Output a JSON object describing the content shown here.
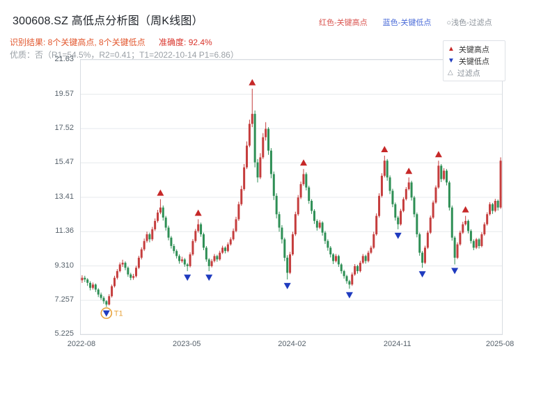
{
  "header": {
    "title": "300608.SZ 高低点分析图（周K线图）",
    "legend_inline": [
      {
        "label": "红色-关键高点",
        "color": "#d9544f"
      },
      {
        "label": "蓝色-关键低点",
        "color": "#4a6bd8"
      },
      {
        "label": "○浅色-过滤点",
        "color": "#8a9199"
      }
    ],
    "result_main": "识别结果: 8个关键高点, 8个关键低点",
    "result_accuracy": "准确度: 92.4%",
    "key_high_count": 8,
    "key_low_count": 8,
    "accuracy": "92.4%",
    "quality_line": "优质：否（R1=54.5%，R2=0.41；T1=2022-10-14 P1=6.86）"
  },
  "legend_box": {
    "items": [
      {
        "label": "关键高点",
        "marker": "up",
        "color": "#c62828"
      },
      {
        "label": "关键低点",
        "marker": "down",
        "color": "#1f3bbf"
      },
      {
        "label": "过滤点",
        "marker": "up-outline",
        "color": "#8a9199"
      }
    ]
  },
  "chart_data": {
    "type": "candlestick",
    "title": "300608.SZ 高低点分析图（周K线图）",
    "xlabel": "",
    "ylabel": "",
    "grid": true,
    "ylim": [
      5.225,
      21.63
    ],
    "yticks": [
      21.63,
      19.57,
      17.52,
      15.47,
      13.41,
      11.36,
      9.31,
      7.257,
      5.225
    ],
    "ytick_labels": [
      "21.63",
      "19.57",
      "17.52",
      "15.47",
      "13.41",
      "11.36",
      "9.310",
      "7.257",
      "5.225"
    ],
    "xtick_labels": [
      "2022-08",
      "2023-05",
      "2024-02",
      "2024-11",
      "2025-08"
    ],
    "xtick_weeks": [
      0,
      39,
      78,
      117,
      155
    ],
    "up_color": "#c53d3d",
    "down_color": "#2e8f55",
    "grid_color": "#e6e9ec",
    "high_marker_color": "#c62828",
    "low_marker_color": "#1f3bbf",
    "key_highs": [
      29,
      43,
      63,
      82,
      112,
      121,
      132,
      142
    ],
    "key_lows": [
      9,
      39,
      47,
      76,
      99,
      117,
      126,
      138
    ],
    "t1": {
      "week": 9,
      "label": "T1",
      "price": 6.86,
      "date": "2022-10-14",
      "color": "#e8a33d"
    },
    "candles": [
      [
        8.45,
        8.75,
        8.3,
        8.6
      ],
      [
        8.6,
        8.72,
        8.35,
        8.5
      ],
      [
        8.5,
        8.58,
        8.12,
        8.3
      ],
      [
        8.3,
        8.4,
        7.85,
        8.0
      ],
      [
        8.0,
        8.32,
        7.9,
        8.2
      ],
      [
        8.2,
        8.26,
        7.75,
        7.9
      ],
      [
        7.9,
        7.98,
        7.45,
        7.6
      ],
      [
        7.6,
        7.72,
        7.28,
        7.4
      ],
      [
        7.4,
        7.5,
        7.05,
        7.2
      ],
      [
        7.2,
        7.26,
        6.86,
        7.0
      ],
      [
        7.0,
        7.62,
        6.95,
        7.5
      ],
      [
        7.5,
        8.2,
        7.42,
        8.1
      ],
      [
        8.1,
        8.72,
        8.02,
        8.6
      ],
      [
        8.6,
        9.12,
        8.5,
        9.0
      ],
      [
        9.0,
        9.52,
        8.92,
        9.4
      ],
      [
        9.4,
        9.68,
        9.25,
        9.5
      ],
      [
        9.5,
        9.58,
        9.05,
        9.2
      ],
      [
        9.2,
        9.28,
        8.66,
        8.8
      ],
      [
        8.8,
        8.9,
        8.46,
        8.6
      ],
      [
        8.6,
        8.84,
        8.48,
        8.7
      ],
      [
        8.7,
        9.32,
        8.62,
        9.2
      ],
      [
        9.2,
        9.92,
        9.12,
        9.8
      ],
      [
        9.8,
        10.42,
        9.7,
        10.3
      ],
      [
        10.3,
        10.95,
        10.2,
        10.8
      ],
      [
        10.8,
        11.36,
        10.7,
        11.2
      ],
      [
        11.2,
        11.3,
        10.72,
        10.9
      ],
      [
        10.9,
        11.64,
        10.8,
        11.5
      ],
      [
        11.5,
        12.15,
        11.4,
        12.0
      ],
      [
        12.0,
        12.66,
        11.9,
        12.5
      ],
      [
        12.5,
        13.3,
        12.4,
        12.8
      ],
      [
        12.8,
        12.92,
        12.02,
        12.2
      ],
      [
        12.2,
        12.3,
        11.42,
        11.6
      ],
      [
        11.6,
        11.72,
        10.84,
        11.0
      ],
      [
        11.0,
        11.1,
        10.35,
        10.5
      ],
      [
        10.5,
        10.62,
        10.05,
        10.2
      ],
      [
        10.2,
        10.3,
        9.75,
        9.9
      ],
      [
        9.9,
        10.0,
        9.44,
        9.6
      ],
      [
        9.6,
        9.86,
        9.5,
        9.7
      ],
      [
        9.7,
        9.78,
        9.26,
        9.4
      ],
      [
        9.4,
        9.48,
        9.0,
        9.3
      ],
      [
        9.3,
        10.12,
        9.22,
        10.0
      ],
      [
        10.0,
        10.92,
        9.92,
        10.8
      ],
      [
        10.8,
        11.52,
        10.7,
        11.4
      ],
      [
        11.4,
        12.1,
        11.3,
        11.8
      ],
      [
        11.8,
        11.9,
        11.05,
        11.2
      ],
      [
        11.2,
        11.3,
        10.25,
        10.4
      ],
      [
        10.4,
        10.5,
        9.56,
        9.7
      ],
      [
        9.7,
        9.78,
        9.0,
        9.3
      ],
      [
        9.3,
        9.72,
        9.22,
        9.6
      ],
      [
        9.6,
        10.02,
        9.52,
        9.9
      ],
      [
        9.9,
        9.98,
        9.56,
        9.7
      ],
      [
        9.7,
        10.22,
        9.62,
        10.1
      ],
      [
        10.1,
        10.52,
        10.02,
        10.4
      ],
      [
        10.4,
        10.48,
        10.06,
        10.2
      ],
      [
        10.2,
        10.72,
        10.12,
        10.6
      ],
      [
        10.6,
        11.02,
        10.52,
        10.9
      ],
      [
        10.9,
        11.55,
        10.82,
        11.4
      ],
      [
        11.4,
        12.25,
        11.32,
        12.1
      ],
      [
        12.1,
        13.15,
        12.0,
        13.0
      ],
      [
        13.0,
        14.1,
        12.9,
        13.9
      ],
      [
        13.9,
        15.4,
        13.8,
        15.2
      ],
      [
        15.2,
        16.75,
        15.1,
        16.5
      ],
      [
        16.5,
        18.05,
        16.4,
        17.8
      ],
      [
        17.8,
        19.9,
        17.6,
        18.4
      ],
      [
        18.4,
        18.6,
        15.2,
        15.5
      ],
      [
        15.5,
        15.7,
        14.3,
        14.6
      ],
      [
        14.6,
        16.05,
        14.5,
        15.8
      ],
      [
        15.8,
        17.25,
        15.7,
        17.0
      ],
      [
        17.0,
        17.9,
        16.8,
        17.5
      ],
      [
        17.5,
        17.6,
        15.95,
        16.2
      ],
      [
        16.2,
        16.35,
        14.55,
        14.8
      ],
      [
        14.8,
        14.95,
        13.25,
        13.5
      ],
      [
        13.5,
        13.65,
        12.15,
        12.4
      ],
      [
        12.4,
        12.55,
        11.35,
        11.6
      ],
      [
        11.6,
        11.75,
        10.65,
        10.9
      ],
      [
        10.9,
        11.0,
        9.6,
        9.8
      ],
      [
        9.8,
        9.95,
        8.5,
        8.9
      ],
      [
        8.9,
        10.15,
        8.82,
        10.0
      ],
      [
        10.0,
        11.35,
        9.92,
        11.2
      ],
      [
        11.2,
        12.55,
        11.1,
        12.4
      ],
      [
        12.4,
        13.55,
        12.3,
        13.4
      ],
      [
        13.4,
        14.35,
        13.3,
        14.2
      ],
      [
        14.2,
        15.1,
        14.1,
        14.8
      ],
      [
        14.8,
        14.9,
        13.82,
        14.0
      ],
      [
        14.0,
        14.1,
        13.02,
        13.2
      ],
      [
        13.2,
        13.3,
        12.42,
        12.6
      ],
      [
        12.6,
        12.7,
        11.82,
        12.0
      ],
      [
        12.0,
        12.1,
        11.42,
        11.6
      ],
      [
        11.6,
        12.05,
        11.52,
        11.9
      ],
      [
        11.9,
        11.98,
        11.12,
        11.3
      ],
      [
        11.3,
        11.4,
        10.62,
        10.8
      ],
      [
        10.8,
        10.9,
        10.22,
        10.4
      ],
      [
        10.4,
        10.5,
        9.82,
        10.0
      ],
      [
        10.0,
        10.08,
        9.42,
        9.6
      ],
      [
        9.6,
        10.02,
        9.52,
        9.9
      ],
      [
        9.9,
        9.98,
        9.25,
        9.4
      ],
      [
        9.4,
        9.48,
        8.85,
        9.0
      ],
      [
        9.0,
        9.08,
        8.55,
        8.7
      ],
      [
        8.7,
        8.78,
        8.25,
        8.4
      ],
      [
        8.4,
        8.48,
        7.95,
        8.2
      ],
      [
        8.2,
        8.92,
        8.12,
        8.8
      ],
      [
        8.8,
        9.42,
        8.72,
        9.3
      ],
      [
        9.3,
        9.38,
        8.85,
        9.0
      ],
      [
        9.0,
        9.62,
        8.92,
        9.5
      ],
      [
        9.5,
        10.02,
        9.42,
        9.9
      ],
      [
        9.9,
        9.98,
        9.45,
        9.6
      ],
      [
        9.6,
        10.22,
        9.52,
        10.1
      ],
      [
        10.1,
        10.52,
        10.02,
        10.4
      ],
      [
        10.4,
        11.35,
        10.32,
        11.2
      ],
      [
        11.2,
        12.45,
        11.12,
        12.3
      ],
      [
        12.3,
        13.65,
        12.2,
        13.5
      ],
      [
        13.5,
        14.85,
        13.4,
        14.7
      ],
      [
        14.7,
        15.9,
        14.6,
        15.6
      ],
      [
        15.6,
        15.7,
        14.4,
        14.6
      ],
      [
        14.6,
        14.72,
        13.6,
        13.8
      ],
      [
        13.8,
        13.92,
        12.82,
        13.0
      ],
      [
        13.0,
        13.1,
        12.02,
        12.2
      ],
      [
        12.2,
        12.3,
        11.5,
        11.8
      ],
      [
        11.8,
        12.72,
        11.72,
        12.6
      ],
      [
        12.6,
        13.42,
        12.52,
        13.3
      ],
      [
        13.3,
        14.02,
        13.22,
        13.9
      ],
      [
        13.9,
        14.6,
        13.82,
        14.3
      ],
      [
        14.3,
        14.4,
        13.22,
        13.4
      ],
      [
        13.4,
        13.5,
        12.22,
        12.4
      ],
      [
        12.4,
        12.5,
        11.02,
        11.2
      ],
      [
        11.2,
        11.3,
        9.92,
        10.1
      ],
      [
        10.1,
        10.2,
        9.2,
        9.5
      ],
      [
        9.5,
        10.52,
        9.42,
        10.4
      ],
      [
        10.4,
        11.42,
        10.32,
        11.3
      ],
      [
        11.3,
        12.32,
        11.22,
        12.2
      ],
      [
        12.2,
        13.22,
        12.12,
        13.1
      ],
      [
        13.1,
        14.12,
        13.02,
        14.0
      ],
      [
        14.0,
        15.6,
        13.92,
        15.3
      ],
      [
        15.3,
        15.4,
        14.32,
        14.5
      ],
      [
        14.5,
        15.15,
        14.42,
        15.0
      ],
      [
        15.0,
        15.1,
        14.12,
        14.3
      ],
      [
        14.3,
        14.4,
        12.62,
        12.8
      ],
      [
        12.8,
        12.92,
        10.82,
        11.0
      ],
      [
        11.0,
        11.1,
        9.4,
        9.8
      ],
      [
        9.8,
        10.72,
        9.72,
        10.6
      ],
      [
        10.6,
        11.42,
        10.52,
        11.3
      ],
      [
        11.3,
        11.95,
        11.22,
        11.8
      ],
      [
        11.8,
        12.3,
        11.72,
        12.0
      ],
      [
        12.0,
        12.08,
        11.25,
        11.4
      ],
      [
        11.4,
        11.5,
        10.65,
        10.8
      ],
      [
        10.8,
        10.9,
        10.25,
        10.4
      ],
      [
        10.4,
        10.98,
        10.32,
        10.9
      ],
      [
        10.9,
        10.98,
        10.35,
        10.5
      ],
      [
        10.5,
        11.32,
        10.42,
        11.2
      ],
      [
        11.2,
        11.92,
        11.12,
        11.8
      ],
      [
        11.8,
        12.52,
        11.72,
        12.4
      ],
      [
        12.4,
        13.12,
        12.32,
        13.0
      ],
      [
        13.0,
        13.08,
        12.42,
        12.6
      ],
      [
        12.6,
        13.32,
        12.52,
        13.2
      ],
      [
        13.2,
        13.28,
        12.62,
        12.8
      ],
      [
        12.8,
        15.8,
        12.72,
        15.6
      ]
    ]
  }
}
